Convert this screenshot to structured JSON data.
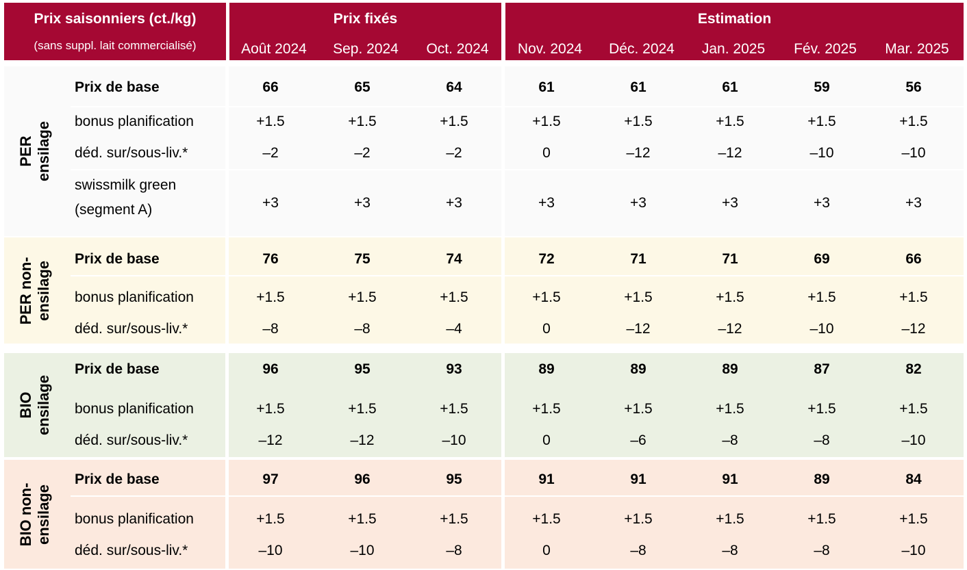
{
  "header": {
    "title": "Prix saisonniers (ct./kg)",
    "subtitle": "(sans suppl. lait commercialisé)",
    "fixed_label": "Prix fixés",
    "estimate_label": "Estimation",
    "months": [
      "Août 2024",
      "Sep. 2024",
      "Oct. 2024",
      "Nov. 2024",
      "Déc. 2024",
      "Jan. 2025",
      "Fév. 2025",
      "Mar. 2025"
    ],
    "color": "#a50833"
  },
  "groups": [
    {
      "name_line1": "PER",
      "name_line2": "ensilage",
      "color": "#fafafa",
      "rows": [
        {
          "label": "Prix de base",
          "bold": true,
          "values": [
            "66",
            "65",
            "64",
            "61",
            "61",
            "61",
            "59",
            "56"
          ]
        },
        {
          "label": "bonus planification",
          "bold": false,
          "values": [
            "+1.5",
            "+1.5",
            "+1.5",
            "+1.5",
            "+1.5",
            "+1.5",
            "+1.5",
            "+1.5"
          ]
        },
        {
          "label": "déd. sur/sous-liv.*",
          "bold": false,
          "values": [
            "–2",
            "–2",
            "–2",
            "0",
            "–12",
            "–12",
            "–10",
            "–10"
          ]
        },
        {
          "label": "swissmilk green",
          "label2": "(segment A)",
          "bold": false,
          "values": [
            "+3",
            "+3",
            "+3",
            "+3",
            "+3",
            "+3",
            "+3",
            "+3"
          ]
        }
      ]
    },
    {
      "name_line1": "PER non-",
      "name_line2": "ensilage",
      "color": "#fdf8e6",
      "rows": [
        {
          "label": "Prix de base",
          "bold": true,
          "values": [
            "76",
            "75",
            "74",
            "72",
            "71",
            "71",
            "69",
            "66"
          ]
        },
        {
          "label": "bonus planification",
          "bold": false,
          "values": [
            "+1.5",
            "+1.5",
            "+1.5",
            "+1.5",
            "+1.5",
            "+1.5",
            "+1.5",
            "+1.5"
          ]
        },
        {
          "label": "déd. sur/sous-liv.*",
          "bold": false,
          "values": [
            "–8",
            "–8",
            "–4",
            "0",
            "–12",
            "–12",
            "–10",
            "–12"
          ]
        }
      ]
    },
    {
      "name_line1": "BIO",
      "name_line2": "ensilage",
      "color": "#ebf1e3",
      "rows": [
        {
          "label": "Prix de base",
          "bold": true,
          "values": [
            "96",
            "95",
            "93",
            "89",
            "89",
            "89",
            "87",
            "82"
          ]
        },
        {
          "label": "bonus planification",
          "bold": false,
          "values": [
            "+1.5",
            "+1.5",
            "+1.5",
            "+1.5",
            "+1.5",
            "+1.5",
            "+1.5",
            "+1.5"
          ]
        },
        {
          "label": "déd. sur/sous-liv.*",
          "bold": false,
          "values": [
            "–12",
            "–12",
            "–10",
            "0",
            "–6",
            "–8",
            "–8",
            "–10"
          ]
        }
      ]
    },
    {
      "name_line1": "BIO non-",
      "name_line2": "ensilage",
      "color": "#fce9de",
      "rows": [
        {
          "label": "Prix de base",
          "bold": true,
          "values": [
            "97",
            "96",
            "95",
            "91",
            "91",
            "91",
            "89",
            "84"
          ]
        },
        {
          "label": "bonus planification",
          "bold": false,
          "values": [
            "+1.5",
            "+1.5",
            "+1.5",
            "+1.5",
            "+1.5",
            "+1.5",
            "+1.5",
            "+1.5"
          ]
        },
        {
          "label": "déd. sur/sous-liv.*",
          "bold": false,
          "values": [
            "–10",
            "–10",
            "–8",
            "0",
            "–8",
            "–8",
            "–8",
            "–10"
          ]
        }
      ]
    }
  ]
}
